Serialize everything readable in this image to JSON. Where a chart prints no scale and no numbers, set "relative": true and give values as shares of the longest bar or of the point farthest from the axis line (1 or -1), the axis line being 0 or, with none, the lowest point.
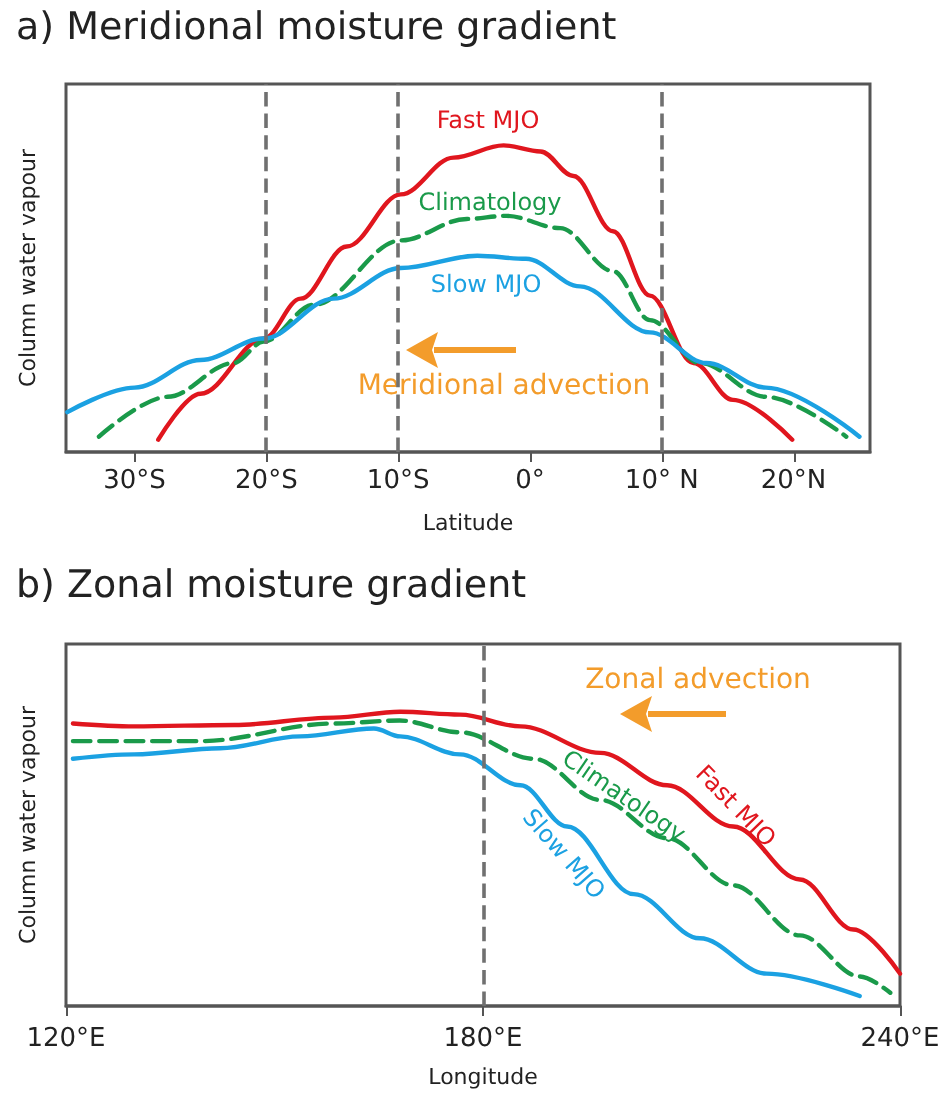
{
  "chart_data": [
    {
      "type": "line",
      "title": "a) Meridional moisture gradient",
      "xlabel": "Latitude",
      "ylabel": "Column water vapour",
      "relative": true,
      "grid": false,
      "legend": false,
      "marker": "none",
      "annotations": [
        "Meridional advection"
      ],
      "xlim": [
        -35.2,
        25.8
      ],
      "xticks": [
        {
          "value": -30,
          "label": "30°S"
        },
        {
          "value": -20,
          "label": "20°S"
        },
        {
          "value": -10,
          "label": "10°S"
        },
        {
          "value": 0,
          "label": "0°"
        },
        {
          "value": 10,
          "label": "10° N"
        },
        {
          "value": 20,
          "label": "20°N"
        }
      ],
      "ref_lines": [
        {
          "axis": "x",
          "value": -20,
          "color": "#707070",
          "line_style": "dashed"
        },
        {
          "axis": "x",
          "value": -10,
          "color": "#707070",
          "line_style": "dashed"
        },
        {
          "axis": "x",
          "value": 10,
          "color": "#707070",
          "line_style": "dashed"
        }
      ],
      "series": [
        {
          "name": "Fast MJO",
          "color": "#e0161e",
          "x": [
            -28.2,
            -25,
            -20.2,
            -17.4,
            -13.9,
            -9.8,
            -5.8,
            -2,
            0.8,
            3.3,
            6.3,
            9.1,
            12.4,
            15.4,
            19.9
          ],
          "values": [
            0.04,
            0.19,
            0.37,
            0.5,
            0.67,
            0.84,
            0.96,
            1,
            0.98,
            0.9,
            0.72,
            0.51,
            0.29,
            0.17,
            0.04
          ]
        },
        {
          "name": "Climatology",
          "color": "#1a9a4a",
          "line_style": "dashed",
          "x": [
            -32.7,
            -27.5,
            -22.5,
            -20.2,
            -16.4,
            -9.8,
            -4.8,
            -1.8,
            2.3,
            6.3,
            9.1,
            12.9,
            17.9,
            24
          ],
          "values": [
            0.05,
            0.18,
            0.29,
            0.36,
            0.48,
            0.69,
            0.76,
            0.77,
            0.73,
            0.59,
            0.43,
            0.29,
            0.18,
            0.05
          ]
        },
        {
          "name": "Slow MJO",
          "color": "#1ba1e2",
          "x": [
            -35.1,
            -30,
            -25,
            -20.2,
            -14.9,
            -9.8,
            -4,
            -0.3,
            3.8,
            9.1,
            13.4,
            17.9,
            25
          ],
          "values": [
            0.13,
            0.21,
            0.3,
            0.37,
            0.5,
            0.6,
            0.64,
            0.63,
            0.54,
            0.39,
            0.29,
            0.21,
            0.05
          ]
        }
      ]
    },
    {
      "type": "line",
      "title": "b) Zonal moisture gradient",
      "xlabel": "Longitude",
      "ylabel": "Column water vapour",
      "relative": true,
      "grid": false,
      "legend": false,
      "marker": "none",
      "annotations": [
        "Zonal advection"
      ],
      "xlim": [
        120,
        240
      ],
      "xticks": [
        {
          "value": 120,
          "label": "120°E"
        },
        {
          "value": 180,
          "label": "180°E"
        },
        {
          "value": 240,
          "label": "240°E"
        }
      ],
      "ref_lines": [
        {
          "axis": "x",
          "value": 180,
          "color": "#707070",
          "line_style": "dashed"
        }
      ],
      "series": [
        {
          "name": "Fast MJO",
          "color": "#e0161e",
          "x": [
            121,
            129.8,
            144.2,
            158.5,
            168.1,
            176.7,
            185.4,
            196.9,
            206.5,
            216,
            225.6,
            233.3,
            240
          ],
          "values": [
            0.96,
            0.95,
            0.955,
            0.98,
            1,
            0.99,
            0.95,
            0.86,
            0.75,
            0.61,
            0.43,
            0.26,
            0.11
          ]
        },
        {
          "name": "Climatology",
          "color": "#1a9a4a",
          "line_style": "dashed",
          "x": [
            121,
            139.4,
            158.5,
            168,
            176.7,
            187.3,
            196.9,
            206.5,
            216,
            225.6,
            234.2,
            238.6
          ],
          "values": [
            0.9,
            0.9,
            0.96,
            0.97,
            0.93,
            0.84,
            0.7,
            0.57,
            0.41,
            0.24,
            0.1,
            0.045
          ]
        },
        {
          "name": "Slow MJO",
          "color": "#1ba1e2",
          "x": [
            121,
            129.8,
            142.2,
            153.7,
            164.3,
            168.1,
            176.7,
            185.4,
            192.1,
            201.7,
            211.2,
            220.8,
            234.2
          ],
          "values": [
            0.84,
            0.855,
            0.876,
            0.916,
            0.943,
            0.916,
            0.855,
            0.75,
            0.61,
            0.38,
            0.23,
            0.11,
            0.034
          ]
        }
      ]
    }
  ]
}
